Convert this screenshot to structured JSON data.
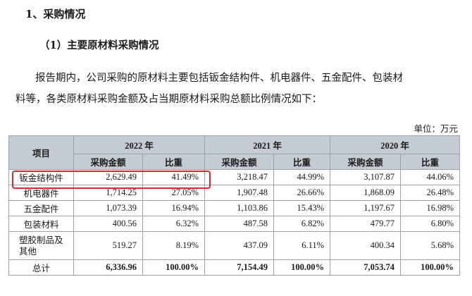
{
  "heading": "1、采购情况",
  "subheading": "（1）主要原材料采购情况",
  "paragraph": {
    "line1": "报告期内，公司采购的原材料主要包括钣金结构件、机电器件、五金配件、包装材",
    "line2": "料等，各类原材料采购金额及占当期原材料采购总额比例情况如下："
  },
  "unit": "单位：万元",
  "table": {
    "item_header": "项目",
    "years": [
      "2022 年",
      "2021 年",
      "2020 年"
    ],
    "sub_headers": {
      "amount": "采购金额",
      "ratio": "比重"
    },
    "rows": [
      {
        "name": "钣金结构件",
        "cells": [
          "2,629.49",
          "41.49%",
          "3,218.47",
          "44.99%",
          "3,107.87",
          "44.06%"
        ]
      },
      {
        "name": "机电器件",
        "cells": [
          "1,714.25",
          "27.05%",
          "1,907.48",
          "26.66%",
          "1,868.09",
          "26.48%"
        ]
      },
      {
        "name": "五金配件",
        "cells": [
          "1,073.39",
          "16.94%",
          "1,103.86",
          "15.43%",
          "1,197.67",
          "16.98%"
        ]
      },
      {
        "name": "包装材料",
        "cells": [
          "400.56",
          "6.32%",
          "487.58",
          "6.82%",
          "479.77",
          "6.80%"
        ]
      },
      {
        "name": "塑胶制品及其他",
        "cells": [
          "519.27",
          "8.19%",
          "437.09",
          "6.11%",
          "400.34",
          "5.68%"
        ]
      },
      {
        "name": "总计",
        "cells": [
          "6,336.96",
          "100.00%",
          "7,154.49",
          "100.00%",
          "7,053.74",
          "100.00%"
        ]
      }
    ],
    "highlight_color": "#e0262c",
    "header_bg": "#c5cbd3"
  }
}
